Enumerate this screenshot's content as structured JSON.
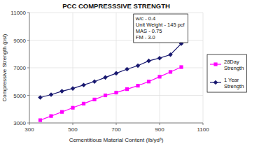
{
  "chart_data": {
    "type": "line",
    "title": "PCC COMPRESSSIVE STRENGTH",
    "xlabel": "Cementitious Material Content (lb/yd³)",
    "ylabel": "Compressive Strength (psi)",
    "annotation": "w/c - 0.4\nUnit Weight - 145 pcf\nMAS - 0.75\nFM - 3.0",
    "x": [
      350,
      400,
      450,
      500,
      550,
      600,
      650,
      700,
      750,
      800,
      850,
      900,
      950,
      1000
    ],
    "series": [
      {
        "name": "28Day\nStrength",
        "color": "#FF00FF",
        "marker": "square",
        "values": [
          3200,
          3500,
          3800,
          4100,
          4400,
          4700,
          5000,
          5200,
          5450,
          5700,
          6000,
          6350,
          6700,
          7050
        ]
      },
      {
        "name": "1 Year\nStrength",
        "color": "#191970",
        "marker": "diamond",
        "values": [
          4850,
          5050,
          5300,
          5500,
          5750,
          6000,
          6300,
          6600,
          6900,
          7150,
          7500,
          7700,
          7950,
          8750
        ]
      }
    ],
    "xlim": [
      300,
      1100
    ],
    "ylim": [
      3000,
      11000
    ],
    "xticks": [
      300,
      500,
      700,
      900,
      1100
    ],
    "yticks": [
      3000,
      5000,
      7000,
      9000,
      11000
    ],
    "grid": true,
    "legend": "right"
  }
}
